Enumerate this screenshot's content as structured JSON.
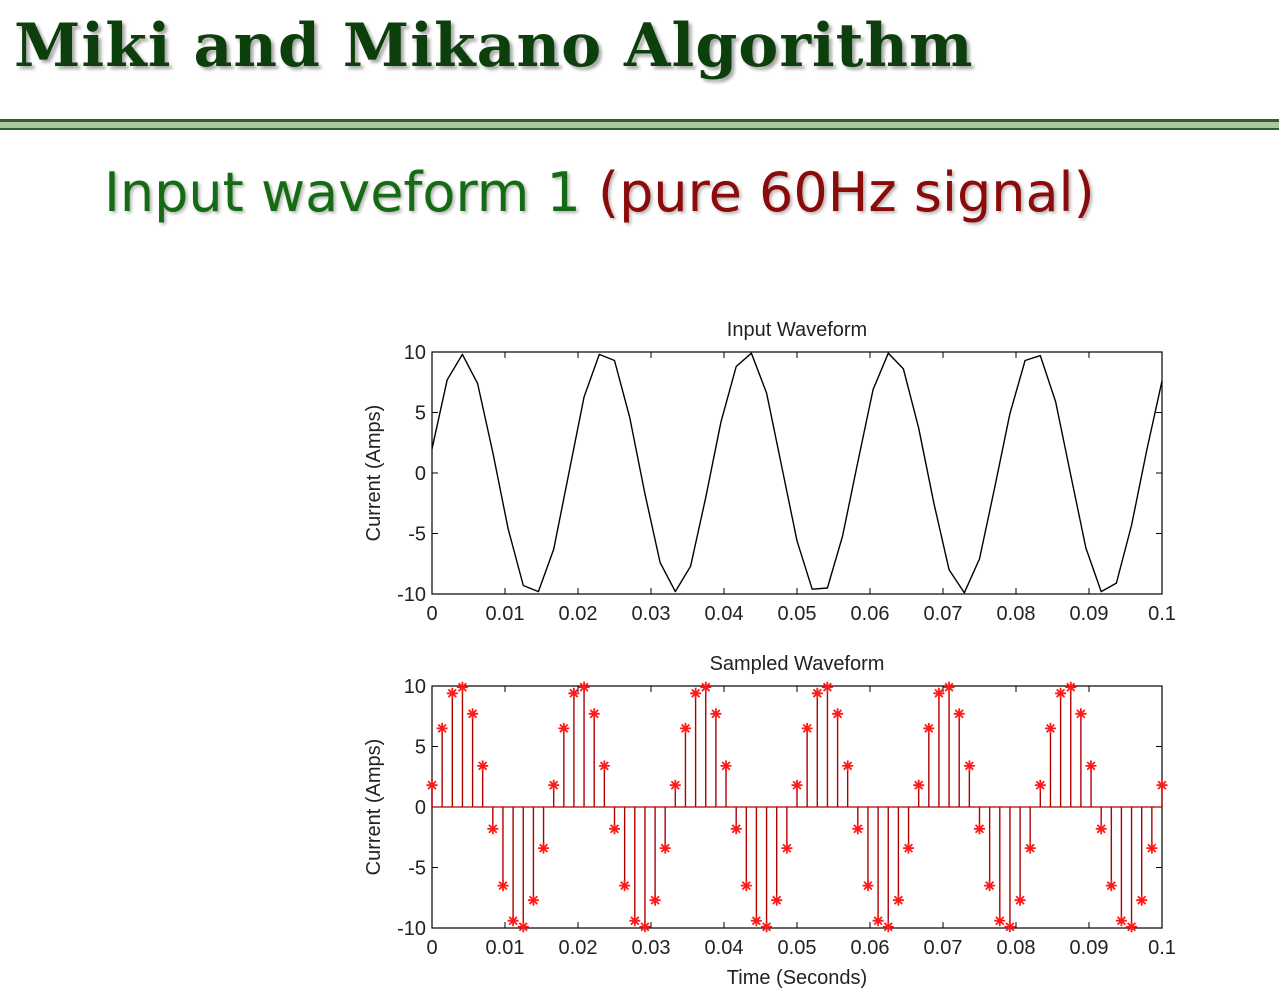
{
  "slide": {
    "title": "Miki and Mikano Algorithm",
    "subtitle_part1": "Input waveform 1",
    "subtitle_part2": "(pure 60Hz signal)",
    "colors": {
      "title": "#0c3f0c",
      "subtitle_green": "#146b14",
      "subtitle_red": "#8b0a0a",
      "rule_dark": "#2f5f2f",
      "rule_light": "#a9c79a"
    }
  },
  "chart_data": [
    {
      "type": "line",
      "title": "Input Waveform",
      "xlabel": "",
      "ylabel": "Current (Amps)",
      "xlim": [
        0,
        0.1
      ],
      "ylim": [
        -10,
        10
      ],
      "xticks": [
        "0",
        "0.01",
        "0.02",
        "0.03",
        "0.04",
        "0.05",
        "0.06",
        "0.07",
        "0.08",
        "0.09",
        "0.1"
      ],
      "yticks": [
        "10",
        "5",
        "0",
        "-5",
        "-10"
      ],
      "grid": false,
      "series": [
        {
          "color": "#000000",
          "x": [
            0,
            0.00208,
            0.00417,
            0.00625,
            0.00833,
            0.01042,
            0.0125,
            0.01458,
            0.01667,
            0.01875,
            0.02083,
            0.02292,
            0.025,
            0.02708,
            0.02917,
            0.03125,
            0.03333,
            0.03542,
            0.0375,
            0.03958,
            0.04167,
            0.04375,
            0.04583,
            0.04792,
            0.05,
            0.05208,
            0.05417,
            0.05625,
            0.05833,
            0.06042,
            0.0625,
            0.06458,
            0.06667,
            0.06875,
            0.07083,
            0.07292,
            0.075,
            0.07708,
            0.07917,
            0.08125,
            0.08333,
            0.08542,
            0.0875,
            0.08958,
            0.09167,
            0.09375,
            0.09583,
            0.09792,
            0.1
          ],
          "y": [
            2,
            7.7,
            9.8,
            7.4,
            1.7,
            -4.6,
            -9.3,
            -9.8,
            -6.3,
            0,
            6.3,
            9.8,
            9.3,
            4.6,
            -1.7,
            -7.4,
            -9.8,
            -7.7,
            -2,
            4.2,
            8.8,
            9.9,
            6.6,
            0.5,
            -5.6,
            -9.6,
            -9.5,
            -5.2,
            0.9,
            6.9,
            9.9,
            8.6,
            3.7,
            -2.5,
            -8,
            -9.9,
            -7.1,
            -1.2,
            4.9,
            9.3,
            9.7,
            5.9,
            -0.2,
            -6.2,
            -9.8,
            -9.1,
            -4.3,
            1.9,
            7.6
          ]
        }
      ]
    },
    {
      "type": "stem",
      "title": "Sampled Waveform",
      "xlabel": "Time (Seconds)",
      "ylabel": "Current (Amps)",
      "xlim": [
        0,
        0.1
      ],
      "ylim": [
        -10,
        10
      ],
      "xticks": [
        "0",
        "0.01",
        "0.02",
        "0.03",
        "0.04",
        "0.05",
        "0.06",
        "0.07",
        "0.08",
        "0.09",
        "0.1"
      ],
      "yticks": [
        "10",
        "5",
        "0",
        "-5",
        "-10"
      ],
      "grid": false,
      "marker": "*",
      "series": [
        {
          "color": "#b00000",
          "x": [
            0,
            0.00139,
            0.00278,
            0.00417,
            0.00556,
            0.00694,
            0.00833,
            0.00972,
            0.01111,
            0.0125,
            0.01389,
            0.01528,
            0.01667,
            0.01806,
            0.01944,
            0.02083,
            0.02222,
            0.02361,
            0.025,
            0.02639,
            0.02778,
            0.02917,
            0.03056,
            0.03194,
            0.03333,
            0.03472,
            0.03611,
            0.0375,
            0.03889,
            0.04028,
            0.04167,
            0.04306,
            0.04444,
            0.04583,
            0.04722,
            0.04861,
            0.05,
            0.05139,
            0.05278,
            0.05417,
            0.05556,
            0.05694,
            0.05833,
            0.05972,
            0.06111,
            0.0625,
            0.06389,
            0.06528,
            0.06667,
            0.06806,
            0.06944,
            0.07083,
            0.07222,
            0.07361,
            0.075,
            0.07639,
            0.07778,
            0.07917,
            0.08056,
            0.08194,
            0.08333,
            0.08472,
            0.08611,
            0.0875,
            0.08889,
            0.09028,
            0.09167,
            0.09306,
            0.09444,
            0.09583,
            0.09722,
            0.09861,
            0.1
          ],
          "y": [
            1.8,
            6.5,
            9.4,
            9.9,
            7.7,
            3.4,
            -1.8,
            -6.5,
            -9.4,
            -9.9,
            -7.7,
            -3.4,
            1.8,
            6.5,
            9.4,
            9.9,
            7.7,
            3.4,
            -1.8,
            -6.5,
            -9.4,
            -9.9,
            -7.7,
            -3.4,
            1.8,
            6.5,
            9.4,
            9.9,
            7.7,
            3.4,
            -1.8,
            -6.5,
            -9.4,
            -9.9,
            -7.7,
            -3.4,
            1.8,
            6.5,
            9.4,
            9.9,
            7.7,
            3.4,
            -1.8,
            -6.5,
            -9.4,
            -9.9,
            -7.7,
            -3.4,
            1.8,
            6.5,
            9.4,
            9.9,
            7.7,
            3.4,
            -1.8,
            -6.5,
            -9.4,
            -9.9,
            -7.7,
            -3.4,
            1.8,
            6.5,
            9.4,
            9.9,
            7.7,
            3.4,
            -1.8,
            -6.5,
            -9.4,
            -9.9,
            -7.7,
            -3.4,
            1.8
          ]
        }
      ]
    }
  ]
}
